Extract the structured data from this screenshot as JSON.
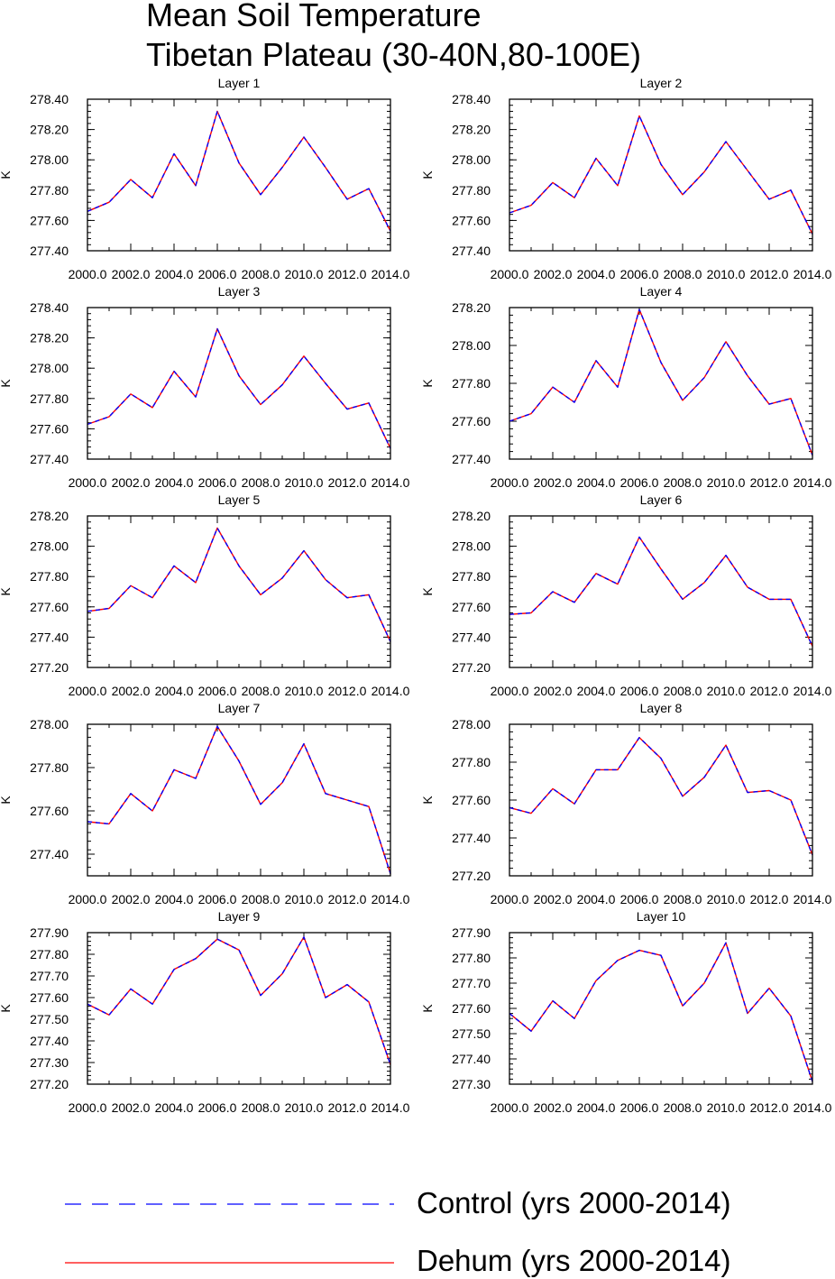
{
  "title": {
    "line1": "Mean Soil Temperature",
    "line2": "Tibetan Plateau (30-40N,80-100E)"
  },
  "legend": [
    {
      "label": "Control (yrs 2000-2014)",
      "color": "#0000ff",
      "style": "dashed"
    },
    {
      "label": "Dehum (yrs 2000-2014)",
      "color": "#ff0000",
      "style": "solid"
    }
  ],
  "chart_data": [
    {
      "type": "line",
      "title": "Layer 1",
      "ylabel": "K",
      "x": [
        2000,
        2001,
        2002,
        2003,
        2004,
        2005,
        2006,
        2007,
        2008,
        2009,
        2010,
        2011,
        2012,
        2013,
        2014
      ],
      "xlim": [
        2000,
        2014
      ],
      "xticks": [
        "2000.0",
        "2002.0",
        "2004.0",
        "2006.0",
        "2008.0",
        "2010.0",
        "2012.0",
        "2014.0"
      ],
      "ylim": [
        277.4,
        278.4
      ],
      "yticks": [
        "277.40",
        "277.60",
        "277.80",
        "278.00",
        "278.20",
        "278.40"
      ],
      "series": [
        {
          "name": "Control (yrs 2000-2014)",
          "values": [
            277.66,
            277.72,
            277.87,
            277.75,
            278.04,
            277.83,
            278.32,
            277.98,
            277.77,
            277.95,
            278.15,
            277.95,
            277.74,
            277.81,
            277.53
          ]
        },
        {
          "name": "Dehum (yrs 2000-2014)",
          "values": [
            277.66,
            277.72,
            277.87,
            277.75,
            278.04,
            277.83,
            278.32,
            277.98,
            277.77,
            277.95,
            278.15,
            277.95,
            277.74,
            277.81,
            277.53
          ]
        }
      ]
    },
    {
      "type": "line",
      "title": "Layer 2",
      "ylabel": "K",
      "x": [
        2000,
        2001,
        2002,
        2003,
        2004,
        2005,
        2006,
        2007,
        2008,
        2009,
        2010,
        2011,
        2012,
        2013,
        2014
      ],
      "xlim": [
        2000,
        2014
      ],
      "xticks": [
        "2000.0",
        "2002.0",
        "2004.0",
        "2006.0",
        "2008.0",
        "2010.0",
        "2012.0",
        "2014.0"
      ],
      "ylim": [
        277.4,
        278.4
      ],
      "yticks": [
        "277.40",
        "277.60",
        "277.80",
        "278.00",
        "278.20",
        "278.40"
      ],
      "series": [
        {
          "name": "Control (yrs 2000-2014)",
          "values": [
            277.65,
            277.7,
            277.85,
            277.75,
            278.01,
            277.83,
            278.29,
            277.97,
            277.77,
            277.92,
            278.12,
            277.93,
            277.74,
            277.8,
            277.51
          ]
        },
        {
          "name": "Dehum (yrs 2000-2014)",
          "values": [
            277.65,
            277.7,
            277.85,
            277.75,
            278.01,
            277.83,
            278.29,
            277.97,
            277.77,
            277.92,
            278.12,
            277.93,
            277.74,
            277.8,
            277.51
          ]
        }
      ]
    },
    {
      "type": "line",
      "title": "Layer 3",
      "ylabel": "K",
      "x": [
        2000,
        2001,
        2002,
        2003,
        2004,
        2005,
        2006,
        2007,
        2008,
        2009,
        2010,
        2011,
        2012,
        2013,
        2014
      ],
      "xlim": [
        2000,
        2014
      ],
      "xticks": [
        "2000.0",
        "2002.0",
        "2004.0",
        "2006.0",
        "2008.0",
        "2010.0",
        "2012.0",
        "2014.0"
      ],
      "ylim": [
        277.4,
        278.4
      ],
      "yticks": [
        "277.40",
        "277.60",
        "277.80",
        "278.00",
        "278.20",
        "278.40"
      ],
      "series": [
        {
          "name": "Control (yrs 2000-2014)",
          "values": [
            277.63,
            277.68,
            277.83,
            277.74,
            277.98,
            277.81,
            278.26,
            277.95,
            277.76,
            277.89,
            278.08,
            277.9,
            277.73,
            277.77,
            277.47
          ]
        },
        {
          "name": "Dehum (yrs 2000-2014)",
          "values": [
            277.63,
            277.68,
            277.83,
            277.74,
            277.98,
            277.81,
            278.26,
            277.95,
            277.76,
            277.89,
            278.08,
            277.9,
            277.73,
            277.77,
            277.47
          ]
        }
      ]
    },
    {
      "type": "line",
      "title": "Layer 4",
      "ylabel": "K",
      "x": [
        2000,
        2001,
        2002,
        2003,
        2004,
        2005,
        2006,
        2007,
        2008,
        2009,
        2010,
        2011,
        2012,
        2013,
        2014
      ],
      "xlim": [
        2000,
        2014
      ],
      "xticks": [
        "2000.0",
        "2002.0",
        "2004.0",
        "2006.0",
        "2008.0",
        "2010.0",
        "2012.0",
        "2014.0"
      ],
      "ylim": [
        277.4,
        278.2
      ],
      "yticks": [
        "277.40",
        "277.60",
        "277.80",
        "278.00",
        "278.20"
      ],
      "series": [
        {
          "name": "Control (yrs 2000-2014)",
          "values": [
            277.6,
            277.64,
            277.78,
            277.7,
            277.92,
            277.78,
            278.19,
            277.91,
            277.71,
            277.83,
            278.02,
            277.84,
            277.69,
            277.72,
            277.42
          ]
        },
        {
          "name": "Dehum (yrs 2000-2014)",
          "values": [
            277.6,
            277.64,
            277.78,
            277.7,
            277.92,
            277.78,
            278.19,
            277.91,
            277.71,
            277.83,
            278.02,
            277.84,
            277.69,
            277.72,
            277.42
          ]
        }
      ]
    },
    {
      "type": "line",
      "title": "Layer 5",
      "ylabel": "K",
      "x": [
        2000,
        2001,
        2002,
        2003,
        2004,
        2005,
        2006,
        2007,
        2008,
        2009,
        2010,
        2011,
        2012,
        2013,
        2014
      ],
      "xlim": [
        2000,
        2014
      ],
      "xticks": [
        "2000.0",
        "2002.0",
        "2004.0",
        "2006.0",
        "2008.0",
        "2010.0",
        "2012.0",
        "2014.0"
      ],
      "ylim": [
        277.2,
        278.2
      ],
      "yticks": [
        "277.20",
        "277.40",
        "277.60",
        "277.80",
        "278.00",
        "278.20"
      ],
      "series": [
        {
          "name": "Control (yrs 2000-2014)",
          "values": [
            277.57,
            277.59,
            277.74,
            277.66,
            277.87,
            277.76,
            278.12,
            277.87,
            277.68,
            277.79,
            277.97,
            277.78,
            277.66,
            277.68,
            277.37
          ]
        },
        {
          "name": "Dehum (yrs 2000-2014)",
          "values": [
            277.57,
            277.59,
            277.74,
            277.66,
            277.87,
            277.76,
            278.12,
            277.87,
            277.68,
            277.79,
            277.97,
            277.78,
            277.66,
            277.68,
            277.37
          ]
        }
      ]
    },
    {
      "type": "line",
      "title": "Layer 6",
      "ylabel": "K",
      "x": [
        2000,
        2001,
        2002,
        2003,
        2004,
        2005,
        2006,
        2007,
        2008,
        2009,
        2010,
        2011,
        2012,
        2013,
        2014
      ],
      "xlim": [
        2000,
        2014
      ],
      "xticks": [
        "2000.0",
        "2002.0",
        "2004.0",
        "2006.0",
        "2008.0",
        "2010.0",
        "2012.0",
        "2014.0"
      ],
      "ylim": [
        277.2,
        278.2
      ],
      "yticks": [
        "277.20",
        "277.40",
        "277.60",
        "277.80",
        "278.00",
        "278.20"
      ],
      "series": [
        {
          "name": "Control (yrs 2000-2014)",
          "values": [
            277.55,
            277.56,
            277.7,
            277.63,
            277.82,
            277.75,
            278.06,
            277.85,
            277.65,
            277.76,
            277.94,
            277.73,
            277.65,
            277.65,
            277.34
          ]
        },
        {
          "name": "Dehum (yrs 2000-2014)",
          "values": [
            277.55,
            277.56,
            277.7,
            277.63,
            277.82,
            277.75,
            278.06,
            277.85,
            277.65,
            277.76,
            277.94,
            277.73,
            277.65,
            277.65,
            277.34
          ]
        }
      ]
    },
    {
      "type": "line",
      "title": "Layer 7",
      "ylabel": "K",
      "x": [
        2000,
        2001,
        2002,
        2003,
        2004,
        2005,
        2006,
        2007,
        2008,
        2009,
        2010,
        2011,
        2012,
        2013,
        2014
      ],
      "xlim": [
        2000,
        2014
      ],
      "xticks": [
        "2000.0",
        "2002.0",
        "2004.0",
        "2006.0",
        "2008.0",
        "2010.0",
        "2012.0",
        "2014.0"
      ],
      "ylim": [
        277.3,
        278.0
      ],
      "yticks": [
        "277.40",
        "277.60",
        "277.80",
        "278.00"
      ],
      "series": [
        {
          "name": "Control (yrs 2000-2014)",
          "values": [
            277.55,
            277.54,
            277.68,
            277.6,
            277.79,
            277.75,
            277.99,
            277.83,
            277.63,
            277.73,
            277.91,
            277.68,
            277.65,
            277.62,
            277.31
          ]
        },
        {
          "name": "Dehum (yrs 2000-2014)",
          "values": [
            277.55,
            277.54,
            277.68,
            277.6,
            277.79,
            277.75,
            277.99,
            277.83,
            277.63,
            277.73,
            277.91,
            277.68,
            277.65,
            277.62,
            277.31
          ]
        }
      ]
    },
    {
      "type": "line",
      "title": "Layer 8",
      "ylabel": "K",
      "x": [
        2000,
        2001,
        2002,
        2003,
        2004,
        2005,
        2006,
        2007,
        2008,
        2009,
        2010,
        2011,
        2012,
        2013,
        2014
      ],
      "xlim": [
        2000,
        2014
      ],
      "xticks": [
        "2000.0",
        "2002.0",
        "2004.0",
        "2006.0",
        "2008.0",
        "2010.0",
        "2012.0",
        "2014.0"
      ],
      "ylim": [
        277.2,
        278.0
      ],
      "yticks": [
        "277.20",
        "277.40",
        "277.60",
        "277.80",
        "278.00"
      ],
      "series": [
        {
          "name": "Control (yrs 2000-2014)",
          "values": [
            277.56,
            277.53,
            277.66,
            277.58,
            277.76,
            277.76,
            277.93,
            277.82,
            277.62,
            277.72,
            277.89,
            277.64,
            277.65,
            277.6,
            277.31
          ]
        },
        {
          "name": "Dehum (yrs 2000-2014)",
          "values": [
            277.56,
            277.53,
            277.66,
            277.58,
            277.76,
            277.76,
            277.93,
            277.82,
            277.62,
            277.72,
            277.89,
            277.64,
            277.65,
            277.6,
            277.31
          ]
        }
      ]
    },
    {
      "type": "line",
      "title": "Layer 9",
      "ylabel": "K",
      "x": [
        2000,
        2001,
        2002,
        2003,
        2004,
        2005,
        2006,
        2007,
        2008,
        2009,
        2010,
        2011,
        2012,
        2013,
        2014
      ],
      "xlim": [
        2000,
        2014
      ],
      "xticks": [
        "2000.0",
        "2002.0",
        "2004.0",
        "2006.0",
        "2008.0",
        "2010.0",
        "2012.0",
        "2014.0"
      ],
      "ylim": [
        277.2,
        277.9
      ],
      "yticks": [
        "277.20",
        "277.30",
        "277.40",
        "277.50",
        "277.60",
        "277.70",
        "277.80",
        "277.90"
      ],
      "series": [
        {
          "name": "Control (yrs 2000-2014)",
          "values": [
            277.57,
            277.52,
            277.64,
            277.57,
            277.73,
            277.78,
            277.87,
            277.82,
            277.61,
            277.71,
            277.88,
            277.6,
            277.66,
            277.58,
            277.29
          ]
        },
        {
          "name": "Dehum (yrs 2000-2014)",
          "values": [
            277.57,
            277.52,
            277.64,
            277.57,
            277.73,
            277.78,
            277.87,
            277.82,
            277.61,
            277.71,
            277.88,
            277.6,
            277.66,
            277.58,
            277.29
          ]
        }
      ]
    },
    {
      "type": "line",
      "title": "Layer 10",
      "ylabel": "K",
      "x": [
        2000,
        2001,
        2002,
        2003,
        2004,
        2005,
        2006,
        2007,
        2008,
        2009,
        2010,
        2011,
        2012,
        2013,
        2014
      ],
      "xlim": [
        2000,
        2014
      ],
      "xticks": [
        "2000.0",
        "2002.0",
        "2004.0",
        "2006.0",
        "2008.0",
        "2010.0",
        "2012.0",
        "2014.0"
      ],
      "ylim": [
        277.3,
        277.9
      ],
      "yticks": [
        "277.30",
        "277.40",
        "277.50",
        "277.60",
        "277.70",
        "277.80",
        "277.90"
      ],
      "series": [
        {
          "name": "Control (yrs 2000-2014)",
          "values": [
            277.58,
            277.51,
            277.63,
            277.56,
            277.71,
            277.79,
            277.83,
            277.81,
            277.61,
            277.7,
            277.86,
            277.58,
            277.68,
            277.57,
            277.31
          ]
        },
        {
          "name": "Dehum (yrs 2000-2014)",
          "values": [
            277.58,
            277.51,
            277.63,
            277.56,
            277.71,
            277.79,
            277.83,
            277.81,
            277.61,
            277.7,
            277.86,
            277.58,
            277.68,
            277.57,
            277.31
          ]
        }
      ]
    }
  ]
}
